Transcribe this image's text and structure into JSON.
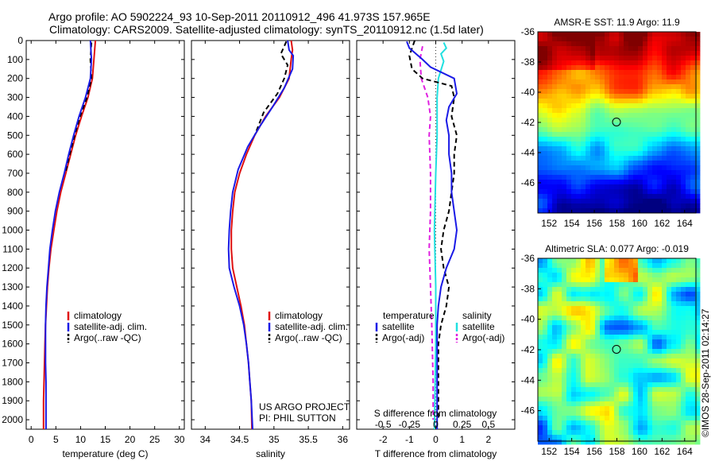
{
  "header": {
    "title_line1": "Argo profile: AO 5902224_93 10-Sep-2011 20110912_496 41.973S 157.965E",
    "title_line2": "Climatology: CARS2009. Satellite-adjusted climatology: synTS_20110912.nc (1.5d later)"
  },
  "credit": "US ARGO PROJECT\nPI: PHIL SUTTON",
  "watermark": "©IMOS 28-Sep-2011 02:14:27",
  "colors": {
    "red": "#e01010",
    "blue": "#1a1ae6",
    "black": "#000000",
    "cyan": "#20e0e0",
    "magenta": "#e020e0"
  },
  "chart_data": [
    {
      "type": "line",
      "xlabel": "temperature (deg C)",
      "xlim": [
        -1,
        31
      ],
      "xticks": [
        0,
        5,
        10,
        15,
        20,
        25,
        30
      ],
      "ylim": [
        0,
        2050
      ],
      "yticks": [
        0,
        100,
        200,
        300,
        400,
        500,
        600,
        700,
        800,
        900,
        1000,
        1100,
        1200,
        1300,
        1400,
        1500,
        1600,
        1700,
        1800,
        1900,
        2000
      ],
      "legend": [
        {
          "label": "climatology",
          "color": "#e01010",
          "dash": ""
        },
        {
          "label": "satellite-adj. clim.",
          "color": "#1a1ae6",
          "dash": ""
        },
        {
          "label": "Argo(..raw -QC)",
          "color": "#000000",
          "dash": "6,4"
        }
      ],
      "series": [
        {
          "color": "#e01010",
          "dash": "",
          "width": 2,
          "points": [
            [
              13,
              0
            ],
            [
              12.7,
              100
            ],
            [
              12.4,
              200
            ],
            [
              11.5,
              300
            ],
            [
              10.2,
              400
            ],
            [
              9.0,
              500
            ],
            [
              8.0,
              600
            ],
            [
              7.0,
              700
            ],
            [
              6.0,
              800
            ],
            [
              5.2,
              900
            ],
            [
              4.6,
              1000
            ],
            [
              4.0,
              1100
            ],
            [
              3.6,
              1200
            ],
            [
              3.3,
              1300
            ],
            [
              3.1,
              1400
            ],
            [
              2.9,
              1500
            ],
            [
              2.8,
              1600
            ],
            [
              2.7,
              1700
            ],
            [
              2.6,
              1800
            ],
            [
              2.5,
              1900
            ],
            [
              2.5,
              2050
            ]
          ]
        },
        {
          "color": "#000000",
          "dash": "6,4",
          "width": 2,
          "points": [
            [
              12.2,
              10
            ],
            [
              12.0,
              100
            ],
            [
              12.2,
              200
            ],
            [
              11.3,
              300
            ],
            [
              9.9,
              400
            ],
            [
              8.8,
              500
            ],
            [
              7.8,
              600
            ],
            [
              6.9,
              700
            ]
          ]
        },
        {
          "color": "#1a1ae6",
          "dash": "",
          "width": 2,
          "points": [
            [
              12.0,
              0
            ],
            [
              12.2,
              100
            ],
            [
              12.0,
              200
            ],
            [
              11.0,
              300
            ],
            [
              9.7,
              400
            ],
            [
              8.6,
              500
            ],
            [
              7.6,
              600
            ],
            [
              6.7,
              700
            ],
            [
              5.7,
              800
            ],
            [
              4.9,
              900
            ],
            [
              4.3,
              1000
            ],
            [
              3.8,
              1100
            ],
            [
              3.5,
              1200
            ],
            [
              3.2,
              1300
            ],
            [
              3.0,
              1400
            ],
            [
              2.9,
              1500
            ],
            [
              2.9,
              1600
            ],
            [
              2.9,
              1700
            ],
            [
              3.0,
              1800
            ],
            [
              3.0,
              1900
            ],
            [
              3.0,
              2050
            ]
          ]
        }
      ]
    },
    {
      "type": "line",
      "xlabel": "salinity",
      "xlim": [
        33.8,
        36.1
      ],
      "xticks": [
        34,
        34.5,
        35,
        35.5,
        36
      ],
      "ylim": [
        0,
        2050
      ],
      "legend": [
        {
          "label": "climatology",
          "color": "#e01010",
          "dash": ""
        },
        {
          "label": "satellite-adj. clim.",
          "color": "#1a1ae6",
          "dash": ""
        },
        {
          "label": "Argo(..raw -QC)",
          "color": "#000000",
          "dash": "6,4"
        }
      ],
      "series": [
        {
          "color": "#000000",
          "dash": "6,4",
          "width": 2,
          "points": [
            [
              35.18,
              5
            ],
            [
              35.15,
              30
            ],
            [
              35.1,
              70
            ],
            [
              35.2,
              130
            ],
            [
              35.15,
              200
            ],
            [
              35.05,
              280
            ],
            [
              34.85,
              380
            ],
            [
              34.72,
              500
            ]
          ]
        },
        {
          "color": "#e01010",
          "dash": "",
          "width": 2,
          "points": [
            [
              35.25,
              0
            ],
            [
              35.27,
              50
            ],
            [
              35.25,
              100
            ],
            [
              35.22,
              200
            ],
            [
              35.08,
              300
            ],
            [
              34.88,
              400
            ],
            [
              34.72,
              500
            ],
            [
              34.6,
              600
            ],
            [
              34.5,
              700
            ],
            [
              34.43,
              800
            ],
            [
              34.4,
              900
            ],
            [
              34.38,
              1000
            ],
            [
              34.38,
              1100
            ],
            [
              34.4,
              1200
            ],
            [
              34.46,
              1300
            ],
            [
              34.52,
              1400
            ],
            [
              34.57,
              1500
            ],
            [
              34.6,
              1600
            ],
            [
              34.63,
              1700
            ],
            [
              34.65,
              1800
            ],
            [
              34.67,
              1900
            ],
            [
              34.68,
              2050
            ]
          ]
        },
        {
          "color": "#1a1ae6",
          "dash": "",
          "width": 2,
          "points": [
            [
              35.2,
              0
            ],
            [
              35.22,
              50
            ],
            [
              35.28,
              80
            ],
            [
              35.27,
              150
            ],
            [
              35.15,
              250
            ],
            [
              34.98,
              350
            ],
            [
              34.8,
              450
            ],
            [
              34.62,
              560
            ],
            [
              34.48,
              680
            ],
            [
              34.4,
              800
            ],
            [
              34.37,
              900
            ],
            [
              34.35,
              1000
            ],
            [
              34.34,
              1100
            ],
            [
              34.35,
              1200
            ],
            [
              34.42,
              1300
            ],
            [
              34.5,
              1400
            ],
            [
              34.56,
              1500
            ],
            [
              34.6,
              1600
            ],
            [
              34.63,
              1700
            ],
            [
              34.65,
              1800
            ],
            [
              34.67,
              1900
            ],
            [
              34.69,
              2050
            ]
          ]
        }
      ]
    },
    {
      "type": "line",
      "xlabel": "T difference from climatology",
      "xlim": [
        -3,
        3
      ],
      "xticks": [
        -2,
        -1,
        0,
        1,
        2
      ],
      "top_xlabel": "S difference from climatology",
      "top_xtick_labels": [
        "-0.5",
        "-0.25",
        "0",
        "0.25",
        "0.5"
      ],
      "top_xtick_values": [
        -2,
        -1,
        0,
        1,
        2
      ],
      "ylim": [
        0,
        2050
      ],
      "legend_left_title": "temperature",
      "legend_right_title": "salinity",
      "legend_left": [
        {
          "label": "satellite",
          "color": "#1a1ae6",
          "dash": ""
        },
        {
          "label": "Argo(-adj)",
          "color": "#000000",
          "dash": "6,4"
        }
      ],
      "legend_right": [
        {
          "label": "satellite",
          "color": "#20e0e0",
          "dash": ""
        },
        {
          "label": "Argo(-adj)",
          "color": "#e020e0",
          "dash": "6,4"
        }
      ],
      "series": [
        {
          "color": "#20e0e0",
          "dash": "",
          "width": 2,
          "points": [
            [
              0.3,
              10
            ],
            [
              0.4,
              40
            ],
            [
              0.2,
              70
            ],
            [
              0.3,
              110
            ],
            [
              0.1,
              200
            ],
            [
              0.05,
              300
            ],
            [
              0.05,
              500
            ],
            [
              0.0,
              700
            ],
            [
              -0.05,
              1000
            ],
            [
              0.0,
              1300
            ],
            [
              0.0,
              1600
            ],
            [
              -0.05,
              2050
            ]
          ]
        },
        {
          "color": "#e020e0",
          "dash": "6,4",
          "width": 2,
          "points": [
            [
              -0.5,
              30
            ],
            [
              -0.6,
              100
            ],
            [
              -0.55,
              200
            ],
            [
              -0.3,
              300
            ],
            [
              -0.2,
              400
            ],
            [
              -0.25,
              500
            ],
            [
              -0.2,
              700
            ],
            [
              -0.2,
              900
            ],
            [
              -0.25,
              1100
            ],
            [
              -0.2,
              1300
            ],
            [
              -0.15,
              1500
            ],
            [
              -0.1,
              1800
            ],
            [
              -0.1,
              2000
            ]
          ]
        },
        {
          "color": "#000000",
          "dash": "6,4",
          "width": 2,
          "points": [
            [
              -0.8,
              0
            ],
            [
              -1.0,
              80
            ],
            [
              -0.9,
              150
            ],
            [
              -0.5,
              200
            ],
            [
              0.6,
              240
            ],
            [
              0.7,
              300
            ],
            [
              0.6,
              400
            ],
            [
              0.8,
              500
            ],
            [
              0.7,
              600
            ],
            [
              0.7,
              700
            ],
            [
              0.6,
              800
            ],
            [
              0.5,
              900
            ],
            [
              0.3,
              1000
            ],
            [
              0.2,
              1100
            ],
            [
              0.3,
              1200
            ],
            [
              0.5,
              1300
            ],
            [
              0.4,
              1400
            ],
            [
              0.2,
              1500
            ],
            [
              0.1,
              1600
            ],
            [
              0.1,
              2000
            ]
          ]
        },
        {
          "color": "#1a1ae6",
          "dash": "",
          "width": 2,
          "points": [
            [
              -1.1,
              5
            ],
            [
              -1.0,
              40
            ],
            [
              -0.5,
              100
            ],
            [
              -0.2,
              140
            ],
            [
              0.7,
              200
            ],
            [
              0.8,
              280
            ],
            [
              0.5,
              350
            ],
            [
              0.4,
              420
            ],
            [
              0.5,
              500
            ],
            [
              0.5,
              600
            ],
            [
              0.6,
              700
            ],
            [
              0.6,
              800
            ],
            [
              0.7,
              900
            ],
            [
              0.8,
              1000
            ],
            [
              0.7,
              1100
            ],
            [
              0.4,
              1200
            ],
            [
              0.2,
              1300
            ],
            [
              0.1,
              1400
            ],
            [
              0.05,
              1500
            ],
            [
              0.05,
              2050
            ]
          ]
        }
      ]
    },
    {
      "type": "heatmap",
      "title": "AMSR-E SST: 11.9 Argo: 11.9",
      "xlim": [
        151,
        165
      ],
      "ylim": [
        -48,
        -36
      ],
      "xticks": [
        152,
        154,
        156,
        158,
        160,
        162,
        164
      ],
      "yticks": [
        -36,
        -38,
        -40,
        -42,
        -44,
        -46
      ],
      "marker": {
        "lon": 157.965,
        "lat": -41.973
      },
      "field": "sst"
    },
    {
      "type": "heatmap",
      "title": "Altimetric SLA: 0.077 Argo: -0.019",
      "xlim": [
        151,
        165
      ],
      "ylim": [
        -48,
        -36
      ],
      "xticks": [
        152,
        154,
        156,
        158,
        160,
        162,
        164
      ],
      "yticks": [
        -36,
        -38,
        -40,
        -42,
        -44,
        -46
      ],
      "marker": {
        "lon": 157.965,
        "lat": -41.973
      },
      "field": "sla"
    }
  ]
}
